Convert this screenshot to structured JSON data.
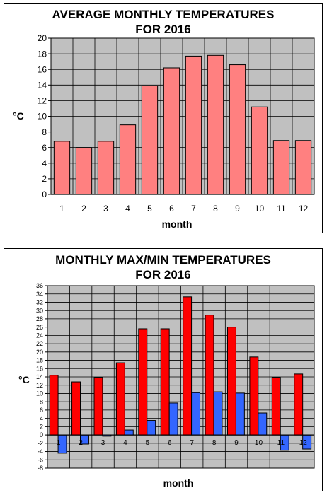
{
  "colors": {
    "plot_bg": "#c0c0c0",
    "avg_bar": "#ff8080",
    "max_bar": "#ff0000",
    "min_bar": "#3366ff",
    "grid": "#000000"
  },
  "chart_data": [
    {
      "type": "bar",
      "title_line1": "AVERAGE MONTHLY TEMPERATURES",
      "title_line2": "FOR 2016",
      "xlabel": "month",
      "ylabel": "°C",
      "ylim": [
        0,
        20
      ],
      "ytick_step": 2,
      "grid": true,
      "categories": [
        "1",
        "2",
        "3",
        "4",
        "5",
        "6",
        "7",
        "8",
        "9",
        "10",
        "11",
        "12"
      ],
      "values": [
        6.8,
        6.0,
        6.8,
        8.9,
        13.9,
        16.2,
        17.7,
        17.8,
        16.6,
        11.2,
        6.9,
        6.9
      ]
    },
    {
      "type": "bar",
      "title_line1": "MONTHLY MAX/MIN TEMPERATURES",
      "title_line2": "FOR 2016",
      "xlabel": "month",
      "ylabel": "°C",
      "ylim": [
        -8,
        36
      ],
      "ytick_step": 2,
      "grid": true,
      "categories": [
        "1",
        "2",
        "3",
        "4",
        "5",
        "6",
        "7",
        "8",
        "9",
        "10",
        "11",
        "12"
      ],
      "series": [
        {
          "values": [
            14.4,
            12.8,
            13.9,
            17.4,
            25.6,
            25.6,
            33.3,
            28.9,
            26.0,
            18.8,
            13.9,
            14.7
          ]
        },
        {
          "values": [
            -4.4,
            -2.2,
            -0.3,
            1.2,
            3.5,
            7.7,
            10.2,
            10.4,
            10.1,
            5.3,
            -3.7,
            -3.4
          ]
        }
      ]
    }
  ]
}
